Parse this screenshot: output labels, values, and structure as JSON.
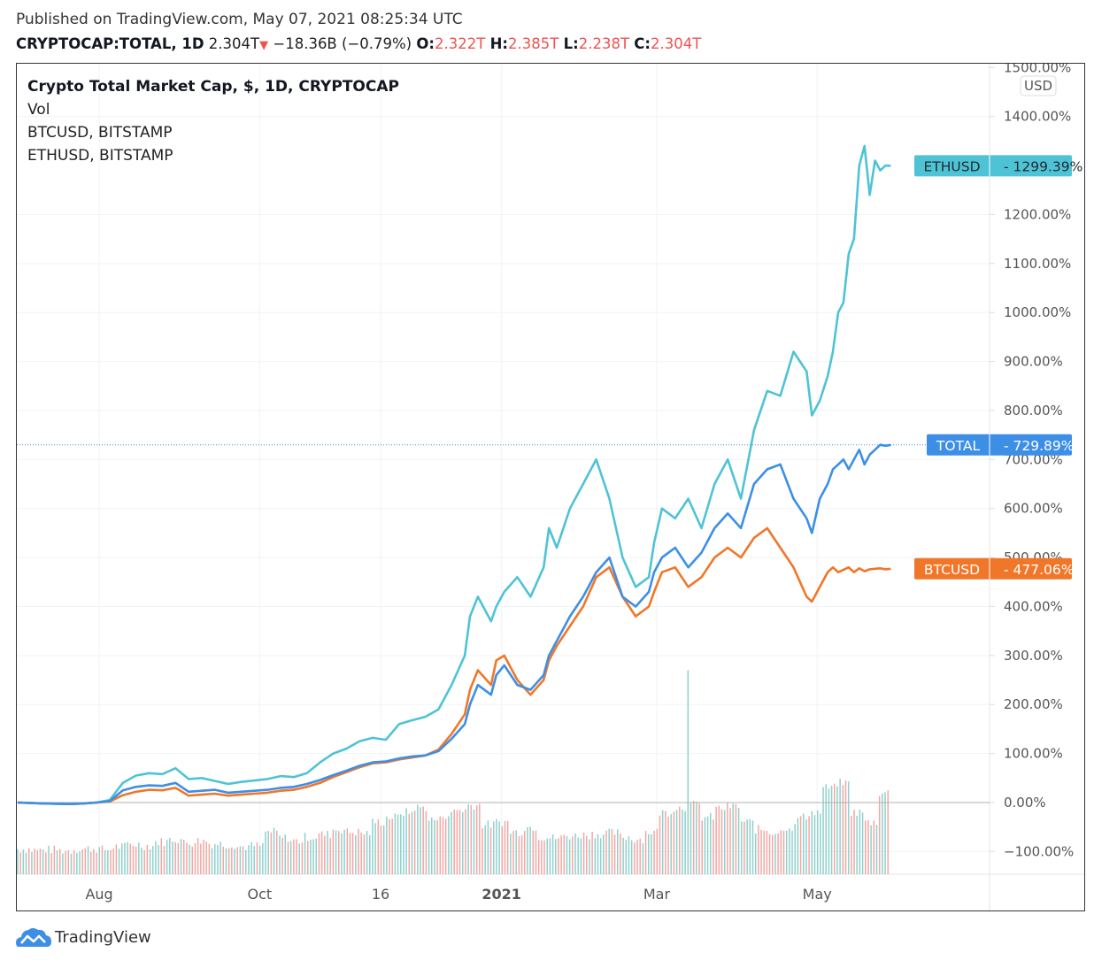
{
  "header": {
    "published": "Published on TradingView.com, May 07, 2021 08:25:34 UTC",
    "symbol": "CRYPTOCAP:TOTAL, 1D",
    "last": "2.304T",
    "change": "−18.36B (−0.79%)",
    "o_label": "O:",
    "o_value": "2.322T",
    "h_label": "H:",
    "h_value": "2.385T",
    "l_label": "L:",
    "l_value": "2.238T",
    "c_label": "C:",
    "c_value": "2.304T",
    "down_icon": "triangle-down-icon"
  },
  "legend": {
    "title": "Crypto Total Market Cap, $, 1D, CRYPTOCAP",
    "vol": "Vol",
    "btc": "BTCUSD, BITSTAMP",
    "eth": "ETHUSD, BITSTAMP"
  },
  "currency_button": "USD",
  "footer": {
    "brand": "TradingView",
    "logo_icon": "tradingview-cloud-logo-icon"
  },
  "colors": {
    "eth": "#4fc3d6",
    "total": "#3d8fe6",
    "btc": "#f0772a",
    "vol_up": "#8fd0cc",
    "vol_down": "#f2a7a3",
    "grid": "#f0f3f7",
    "zero_line": "#b0b0b0"
  },
  "chart_data": {
    "type": "line",
    "title": "Crypto Total Market Cap, $, 1D, CRYPTOCAP",
    "xlabel": "",
    "ylabel": "USD",
    "y_unit": "%",
    "ylim": [
      -140,
      1520
    ],
    "y_ticks": [
      "1500.00%",
      "1400.00%",
      "1200.00%",
      "1100.00%",
      "1000.00%",
      "900.00%",
      "800.00%",
      "700.00%",
      "600.00%",
      "500.00%",
      "400.00%",
      "300.00%",
      "200.00%",
      "100.00%",
      "0.00%",
      "−100.00%"
    ],
    "y_tick_values": [
      1500,
      1400,
      1200,
      1100,
      1000,
      900,
      800,
      700,
      600,
      500,
      400,
      300,
      200,
      100,
      0,
      -100
    ],
    "x_ticks": [
      {
        "label": "Aug",
        "day": 31,
        "bold": false
      },
      {
        "label": "Oct",
        "day": 92,
        "bold": false
      },
      {
        "label": "16",
        "day": 138,
        "bold": false
      },
      {
        "label": "2021",
        "day": 184,
        "bold": true
      },
      {
        "label": "Mar",
        "day": 243,
        "bold": false
      },
      {
        "label": "May",
        "day": 304,
        "bold": false
      }
    ],
    "x_range_days": [
      0,
      346
    ],
    "grid": true,
    "series": [
      {
        "name": "ETHUSD",
        "last_label": "1299.39%",
        "last_value": 1299.39,
        "x": [
          0,
          10,
          20,
          25,
          30,
          35,
          40,
          45,
          50,
          55,
          60,
          65,
          70,
          75,
          80,
          85,
          90,
          95,
          100,
          105,
          110,
          115,
          120,
          125,
          130,
          135,
          140,
          145,
          150,
          155,
          160,
          165,
          170,
          172,
          175,
          180,
          182,
          185,
          190,
          195,
          200,
          202,
          205,
          210,
          215,
          220,
          225,
          230,
          235,
          240,
          242,
          245,
          250,
          255,
          260,
          265,
          270,
          275,
          280,
          285,
          290,
          295,
          300,
          302,
          305,
          308,
          310,
          312,
          314,
          316,
          318,
          320,
          322,
          324,
          326,
          328,
          330,
          332
        ],
        "values": [
          0,
          -2,
          -3,
          -2,
          0,
          5,
          40,
          55,
          60,
          58,
          70,
          48,
          50,
          44,
          38,
          42,
          45,
          48,
          54,
          52,
          60,
          82,
          100,
          110,
          125,
          132,
          128,
          160,
          168,
          175,
          190,
          240,
          300,
          380,
          420,
          370,
          400,
          430,
          460,
          420,
          480,
          560,
          520,
          600,
          650,
          700,
          620,
          500,
          440,
          460,
          530,
          600,
          580,
          620,
          560,
          650,
          700,
          620,
          760,
          840,
          830,
          920,
          880,
          790,
          820,
          870,
          920,
          1000,
          1020,
          1120,
          1150,
          1300,
          1340,
          1240,
          1310,
          1290,
          1300,
          1299.39
        ]
      },
      {
        "name": "TOTAL",
        "last_label": "729.89%",
        "last_value": 729.89,
        "x": [
          0,
          10,
          20,
          25,
          30,
          35,
          40,
          45,
          50,
          55,
          60,
          65,
          70,
          75,
          80,
          85,
          90,
          95,
          100,
          105,
          110,
          115,
          120,
          125,
          130,
          135,
          140,
          145,
          150,
          155,
          160,
          165,
          170,
          172,
          175,
          180,
          182,
          185,
          190,
          195,
          200,
          202,
          205,
          210,
          215,
          220,
          225,
          230,
          235,
          240,
          242,
          245,
          250,
          255,
          260,
          265,
          270,
          275,
          280,
          285,
          290,
          295,
          300,
          302,
          305,
          308,
          310,
          312,
          314,
          316,
          318,
          320,
          322,
          324,
          326,
          328,
          330,
          332
        ],
        "values": [
          0,
          -2,
          -3,
          -2,
          0,
          3,
          25,
          32,
          35,
          34,
          40,
          22,
          24,
          26,
          20,
          22,
          24,
          26,
          30,
          32,
          38,
          46,
          56,
          65,
          75,
          82,
          84,
          90,
          94,
          96,
          105,
          130,
          160,
          200,
          240,
          220,
          260,
          280,
          240,
          230,
          260,
          300,
          330,
          380,
          420,
          470,
          500,
          420,
          400,
          430,
          470,
          500,
          520,
          480,
          510,
          560,
          590,
          560,
          650,
          680,
          690,
          620,
          580,
          550,
          620,
          650,
          680,
          690,
          700,
          680,
          700,
          720,
          690,
          710,
          720,
          730,
          728,
          729.89
        ]
      },
      {
        "name": "BTCUSD",
        "last_label": "477.06%",
        "last_value": 477.06,
        "x": [
          0,
          10,
          20,
          25,
          30,
          35,
          40,
          45,
          50,
          55,
          60,
          65,
          70,
          75,
          80,
          85,
          90,
          95,
          100,
          105,
          110,
          115,
          120,
          125,
          130,
          135,
          140,
          145,
          150,
          155,
          160,
          165,
          170,
          172,
          175,
          180,
          182,
          185,
          190,
          195,
          200,
          202,
          205,
          210,
          215,
          220,
          225,
          230,
          235,
          240,
          242,
          245,
          250,
          255,
          260,
          265,
          270,
          275,
          280,
          285,
          290,
          295,
          300,
          302,
          305,
          308,
          310,
          312,
          314,
          316,
          318,
          320,
          322,
          324,
          326,
          328,
          330,
          332
        ],
        "values": [
          0,
          -2,
          -3,
          -2,
          0,
          2,
          15,
          22,
          26,
          25,
          30,
          14,
          16,
          18,
          14,
          16,
          18,
          20,
          24,
          26,
          32,
          40,
          52,
          62,
          72,
          80,
          82,
          88,
          92,
          96,
          108,
          140,
          180,
          230,
          270,
          240,
          290,
          300,
          250,
          220,
          250,
          290,
          320,
          360,
          400,
          460,
          480,
          420,
          380,
          400,
          430,
          470,
          480,
          440,
          460,
          500,
          520,
          500,
          540,
          560,
          520,
          480,
          420,
          410,
          440,
          470,
          480,
          470,
          475,
          480,
          470,
          478,
          472,
          476,
          477,
          478,
          476,
          477.06
        ]
      },
      {
        "name": "Vol",
        "type": "bar",
        "description_values_relative": [
          -95,
          -97,
          -96,
          -98,
          -95,
          -94,
          -96,
          -90,
          -85,
          -88,
          -80,
          -75,
          -82,
          -78,
          -84,
          -86,
          -90,
          -88,
          -60,
          -72,
          -78,
          -70,
          -65,
          -55,
          -60,
          -62,
          -40,
          -30,
          -20,
          -10,
          -35,
          -25,
          -15,
          -5,
          -45,
          -40,
          -60,
          -50,
          -70,
          -72,
          -68,
          -66,
          -64,
          -62,
          -70,
          -74,
          -60,
          -20,
          -10,
          -5,
          -30,
          -12,
          -8,
          -40,
          -55,
          -60,
          -50,
          -30,
          -20,
          30,
          40,
          -20,
          -40,
          20
        ]
      }
    ]
  }
}
